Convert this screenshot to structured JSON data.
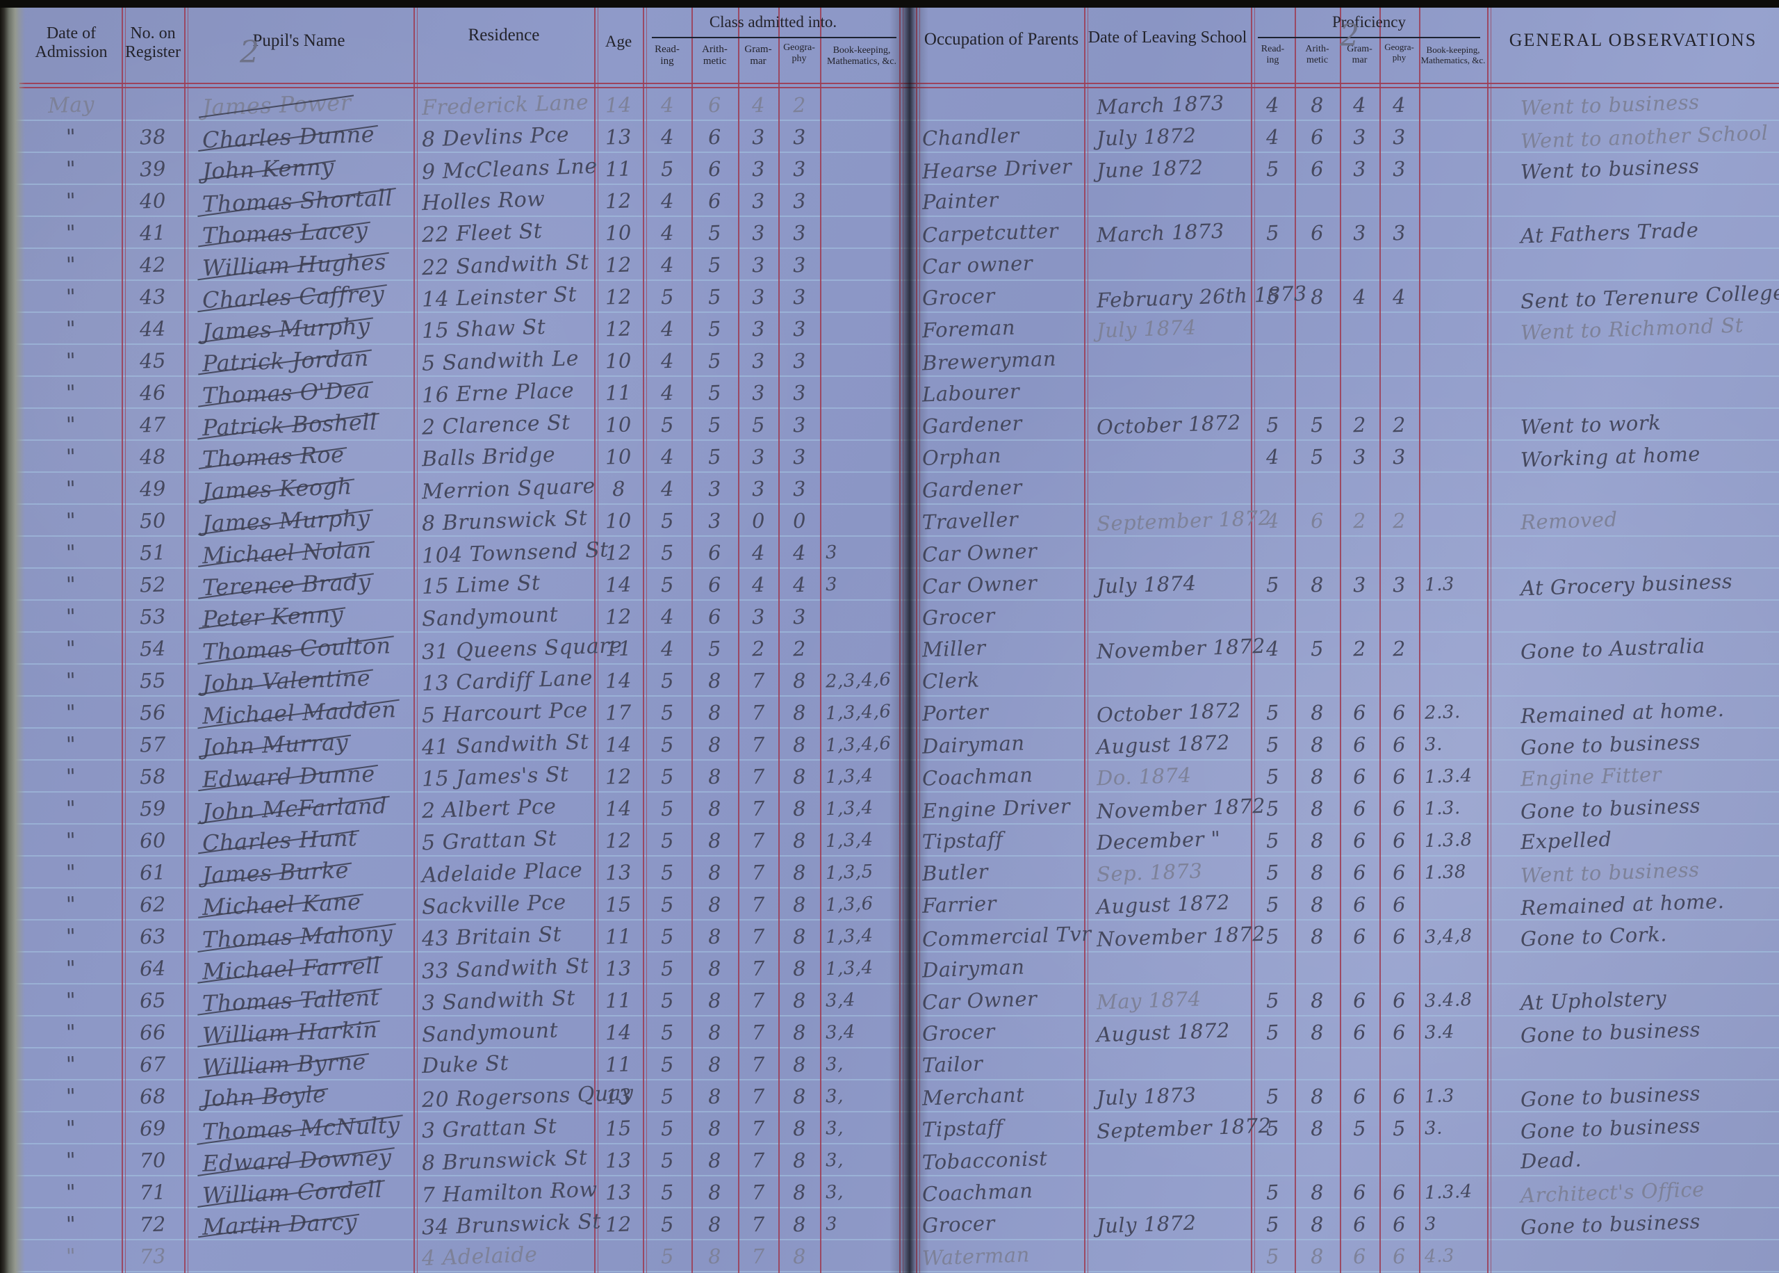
{
  "page": {
    "page_number_left": "2",
    "page_number_right": "2"
  },
  "headers": {
    "date_of_admission": "Date of\nAdmission",
    "no_on_register": "No. on\nRegister",
    "pupils_name": "Pupil's Name",
    "residence": "Residence",
    "age": "Age",
    "class_admitted_into": "Class admitted into.",
    "occupation_of_parents": "Occupation of Parents",
    "date_of_leaving_school": "Date of Leaving School",
    "proficiency": "Proficiency",
    "general_observations": "GENERAL OBSERVATIONS",
    "sub": [
      "Read-\ning",
      "Arith-\nmetic",
      "Gram-\nmar",
      "Geogra-\nphy",
      "Book-keeping,\nMathematics, &c."
    ]
  },
  "rows": [
    {
      "adm": "May",
      "no": "",
      "name": "James Power",
      "res": "Frederick Lane",
      "age": "14",
      "cr": "4",
      "ca": "6",
      "cg": "4",
      "cge": "2",
      "cb": "",
      "occ": "",
      "leave": "March 1873",
      "pr": "4",
      "pa": "8",
      "pg": "4",
      "pge": "4",
      "pb": "",
      "obs": "Went to business",
      "lt": [
        "adm",
        "name",
        "res",
        "age",
        "cr",
        "ca",
        "cg",
        "cge",
        "obs"
      ]
    },
    {
      "adm": "\"",
      "no": "38",
      "name": "Charles Dunne",
      "res": "8 Devlins Pce",
      "age": "13",
      "cr": "4",
      "ca": "6",
      "cg": "3",
      "cge": "3",
      "cb": "",
      "occ": "Chandler",
      "leave": "July 1872",
      "pr": "4",
      "pa": "6",
      "pg": "3",
      "pge": "3",
      "pb": "",
      "obs": "Went to another School",
      "lt": [
        "obs"
      ]
    },
    {
      "adm": "\"",
      "no": "39",
      "name": "John Kenny",
      "res": "9 McCleans Lne",
      "age": "11",
      "cr": "5",
      "ca": "6",
      "cg": "3",
      "cge": "3",
      "cb": "",
      "occ": "Hearse Driver",
      "leave": "June 1872",
      "pr": "5",
      "pa": "6",
      "pg": "3",
      "pge": "3",
      "pb": "",
      "obs": "Went to business"
    },
    {
      "adm": "\"",
      "no": "40",
      "name": "Thomas Shortall",
      "res": "Holles Row",
      "age": "12",
      "cr": "4",
      "ca": "6",
      "cg": "3",
      "cge": "3",
      "cb": "",
      "occ": "Painter",
      "leave": "",
      "pr": "",
      "pa": "",
      "pg": "",
      "pge": "",
      "pb": "",
      "obs": ""
    },
    {
      "adm": "\"",
      "no": "41",
      "name": "Thomas Lacey",
      "res": "22 Fleet St",
      "age": "10",
      "cr": "4",
      "ca": "5",
      "cg": "3",
      "cge": "3",
      "cb": "",
      "occ": "Carpetcutter",
      "leave": "March 1873",
      "pr": "5",
      "pa": "6",
      "pg": "3",
      "pge": "3",
      "pb": "",
      "obs": "At Fathers Trade"
    },
    {
      "adm": "\"",
      "no": "42",
      "name": "William Hughes",
      "res": "22 Sandwith St",
      "age": "12",
      "cr": "4",
      "ca": "5",
      "cg": "3",
      "cge": "3",
      "cb": "",
      "occ": "Car owner",
      "leave": "",
      "pr": "",
      "pa": "",
      "pg": "",
      "pge": "",
      "pb": "",
      "obs": ""
    },
    {
      "adm": "\"",
      "no": "43",
      "name": "Charles Caffrey",
      "res": "14 Leinster St",
      "age": "12",
      "cr": "5",
      "ca": "5",
      "cg": "3",
      "cge": "3",
      "cb": "",
      "occ": "Grocer",
      "leave": "February 26th 1873",
      "pr": "5",
      "pa": "8",
      "pg": "4",
      "pge": "4",
      "pb": "",
      "obs": "Sent to Terenure College"
    },
    {
      "adm": "\"",
      "no": "44",
      "name": "James Murphy",
      "res": "15 Shaw St",
      "age": "12",
      "cr": "4",
      "ca": "5",
      "cg": "3",
      "cge": "3",
      "cb": "",
      "occ": "Foreman",
      "leave": "July 1874",
      "pr": "",
      "pa": "",
      "pg": "",
      "pge": "",
      "pb": "",
      "obs": "Went to Richmond St",
      "lt": [
        "leave",
        "obs"
      ]
    },
    {
      "adm": "\"",
      "no": "45",
      "name": "Patrick Jordan",
      "res": "5 Sandwith Le",
      "age": "10",
      "cr": "4",
      "ca": "5",
      "cg": "3",
      "cge": "3",
      "cb": "",
      "occ": "Breweryman",
      "leave": "",
      "pr": "",
      "pa": "",
      "pg": "",
      "pge": "",
      "pb": "",
      "obs": ""
    },
    {
      "adm": "\"",
      "no": "46",
      "name": "Thomas O'Dea",
      "res": "16 Erne Place",
      "age": "11",
      "cr": "4",
      "ca": "5",
      "cg": "3",
      "cge": "3",
      "cb": "",
      "occ": "Labourer",
      "leave": "",
      "pr": "",
      "pa": "",
      "pg": "",
      "pge": "",
      "pb": "",
      "obs": ""
    },
    {
      "adm": "\"",
      "no": "47",
      "name": "Patrick Boshell",
      "res": "2 Clarence St",
      "age": "10",
      "cr": "5",
      "ca": "5",
      "cg": "5",
      "cge": "3",
      "cb": "",
      "occ": "Gardener",
      "leave": "October 1872",
      "pr": "5",
      "pa": "5",
      "pg": "2",
      "pge": "2",
      "pb": "",
      "obs": "Went to work"
    },
    {
      "adm": "\"",
      "no": "48",
      "name": "Thomas Roe",
      "res": "Balls Bridge",
      "age": "10",
      "cr": "4",
      "ca": "5",
      "cg": "3",
      "cge": "3",
      "cb": "",
      "occ": "Orphan",
      "leave": "",
      "pr": "4",
      "pa": "5",
      "pg": "3",
      "pge": "3",
      "pb": "",
      "obs": "Working at home"
    },
    {
      "adm": "\"",
      "no": "49",
      "name": "James Keogh",
      "res": "Merrion Square",
      "age": "8",
      "cr": "4",
      "ca": "3",
      "cg": "3",
      "cge": "3",
      "cb": "",
      "occ": "Gardener",
      "leave": "",
      "pr": "",
      "pa": "",
      "pg": "",
      "pge": "",
      "pb": "",
      "obs": ""
    },
    {
      "adm": "\"",
      "no": "50",
      "name": "James Murphy",
      "res": "8 Brunswick St",
      "age": "10",
      "cr": "5",
      "ca": "3",
      "cg": "0",
      "cge": "0",
      "cb": "",
      "occ": "Traveller",
      "leave": "September 1872",
      "pr": "4",
      "pa": "6",
      "pg": "2",
      "pge": "2",
      "pb": "",
      "obs": "Removed",
      "lt": [
        "leave",
        "pr",
        "pa",
        "pg",
        "pge",
        "obs"
      ]
    },
    {
      "adm": "\"",
      "no": "51",
      "name": "Michael Nolan",
      "res": "104 Townsend St",
      "age": "12",
      "cr": "5",
      "ca": "6",
      "cg": "4",
      "cge": "4",
      "cb": "3",
      "occ": "Car Owner",
      "leave": "",
      "pr": "",
      "pa": "",
      "pg": "",
      "pge": "",
      "pb": "",
      "obs": ""
    },
    {
      "adm": "\"",
      "no": "52",
      "name": "Terence Brady",
      "res": "15 Lime St",
      "age": "14",
      "cr": "5",
      "ca": "6",
      "cg": "4",
      "cge": "4",
      "cb": "3",
      "occ": "Car Owner",
      "leave": "July 1874",
      "pr": "5",
      "pa": "8",
      "pg": "3",
      "pge": "3",
      "pb": "1.3",
      "obs": "At Grocery business"
    },
    {
      "adm": "\"",
      "no": "53",
      "name": "Peter Kenny",
      "res": "Sandymount",
      "age": "12",
      "cr": "4",
      "ca": "6",
      "cg": "3",
      "cge": "3",
      "cb": "",
      "occ": "Grocer",
      "leave": "",
      "pr": "",
      "pa": "",
      "pg": "",
      "pge": "",
      "pb": "",
      "obs": ""
    },
    {
      "adm": "\"",
      "no": "54",
      "name": "Thomas Coulton",
      "res": "31 Queens Square",
      "age": "11",
      "cr": "4",
      "ca": "5",
      "cg": "2",
      "cge": "2",
      "cb": "",
      "occ": "Miller",
      "leave": "November 1872",
      "pr": "4",
      "pa": "5",
      "pg": "2",
      "pge": "2",
      "pb": "",
      "obs": "Gone to Australia"
    },
    {
      "adm": "\"",
      "no": "55",
      "name": "John Valentine",
      "res": "13 Cardiff Lane",
      "age": "14",
      "cr": "5",
      "ca": "8",
      "cg": "7",
      "cge": "8",
      "cb": "2,3,4,6",
      "occ": "Clerk",
      "leave": "",
      "pr": "",
      "pa": "",
      "pg": "",
      "pge": "",
      "pb": "",
      "obs": ""
    },
    {
      "adm": "\"",
      "no": "56",
      "name": "Michael Madden",
      "res": "5 Harcourt Pce",
      "age": "17",
      "cr": "5",
      "ca": "8",
      "cg": "7",
      "cge": "8",
      "cb": "1,3,4,6",
      "occ": "Porter",
      "leave": "October 1872",
      "pr": "5",
      "pa": "8",
      "pg": "6",
      "pge": "6",
      "pb": "2.3.",
      "obs": "Remained at home."
    },
    {
      "adm": "\"",
      "no": "57",
      "name": "John Murray",
      "res": "41 Sandwith St",
      "age": "14",
      "cr": "5",
      "ca": "8",
      "cg": "7",
      "cge": "8",
      "cb": "1,3,4,6",
      "occ": "Dairyman",
      "leave": "August 1872",
      "pr": "5",
      "pa": "8",
      "pg": "6",
      "pge": "6",
      "pb": "3.",
      "obs": "Gone to business"
    },
    {
      "adm": "\"",
      "no": "58",
      "name": "Edward Dunne",
      "res": "15 James's St",
      "age": "12",
      "cr": "5",
      "ca": "8",
      "cg": "7",
      "cge": "8",
      "cb": "1,3,4",
      "occ": "Coachman",
      "leave": "Do. 1874",
      "pr": "5",
      "pa": "8",
      "pg": "6",
      "pge": "6",
      "pb": "1.3.4",
      "obs": "Engine Fitter",
      "lt": [
        "leave",
        "obs"
      ]
    },
    {
      "adm": "\"",
      "no": "59",
      "name": "John McFarland",
      "res": "2 Albert Pce",
      "age": "14",
      "cr": "5",
      "ca": "8",
      "cg": "7",
      "cge": "8",
      "cb": "1,3,4",
      "occ": "Engine Driver",
      "leave": "November 1872",
      "pr": "5",
      "pa": "8",
      "pg": "6",
      "pge": "6",
      "pb": "1.3.",
      "obs": "Gone to business"
    },
    {
      "adm": "\"",
      "no": "60",
      "name": "Charles Hunt",
      "res": "5 Grattan St",
      "age": "12",
      "cr": "5",
      "ca": "8",
      "cg": "7",
      "cge": "8",
      "cb": "1,3,4",
      "occ": "Tipstaff",
      "leave": "December \"",
      "pr": "5",
      "pa": "8",
      "pg": "6",
      "pge": "6",
      "pb": "1.3.8",
      "obs": "Expelled"
    },
    {
      "adm": "\"",
      "no": "61",
      "name": "James Burke",
      "res": "Adelaide Place",
      "age": "13",
      "cr": "5",
      "ca": "8",
      "cg": "7",
      "cge": "8",
      "cb": "1,3,5",
      "occ": "Butler",
      "leave": "Sep. 1873",
      "pr": "5",
      "pa": "8",
      "pg": "6",
      "pge": "6",
      "pb": "1.38",
      "obs": "Went to business",
      "lt": [
        "leave",
        "obs"
      ]
    },
    {
      "adm": "\"",
      "no": "62",
      "name": "Michael Kane",
      "res": "Sackville Pce",
      "age": "15",
      "cr": "5",
      "ca": "8",
      "cg": "7",
      "cge": "8",
      "cb": "1,3,6",
      "occ": "Farrier",
      "leave": "August 1872",
      "pr": "5",
      "pa": "8",
      "pg": "6",
      "pge": "6",
      "pb": "",
      "obs": "Remained at home."
    },
    {
      "adm": "\"",
      "no": "63",
      "name": "Thomas Mahony",
      "res": "43 Britain St",
      "age": "11",
      "cr": "5",
      "ca": "8",
      "cg": "7",
      "cge": "8",
      "cb": "1,3,4",
      "occ": "Commercial Tvr",
      "leave": "November 1872",
      "pr": "5",
      "pa": "8",
      "pg": "6",
      "pge": "6",
      "pb": "3,4,8",
      "obs": "Gone to Cork."
    },
    {
      "adm": "\"",
      "no": "64",
      "name": "Michael Farrell",
      "res": "33 Sandwith St",
      "age": "13",
      "cr": "5",
      "ca": "8",
      "cg": "7",
      "cge": "8",
      "cb": "1,3,4",
      "occ": "Dairyman",
      "leave": "",
      "pr": "",
      "pa": "",
      "pg": "",
      "pge": "",
      "pb": "",
      "obs": ""
    },
    {
      "adm": "\"",
      "no": "65",
      "name": "Thomas Tallent",
      "res": "3 Sandwith St",
      "age": "11",
      "cr": "5",
      "ca": "8",
      "cg": "7",
      "cge": "8",
      "cb": "3,4",
      "occ": "Car Owner",
      "leave": "May 1874",
      "pr": "5",
      "pa": "8",
      "pg": "6",
      "pge": "6",
      "pb": "3.4.8",
      "obs": "At Upholstery",
      "lt": [
        "leave"
      ]
    },
    {
      "adm": "\"",
      "no": "66",
      "name": "William Harkin",
      "res": "Sandymount",
      "age": "14",
      "cr": "5",
      "ca": "8",
      "cg": "7",
      "cge": "8",
      "cb": "3,4",
      "occ": "Grocer",
      "leave": "August 1872",
      "pr": "5",
      "pa": "8",
      "pg": "6",
      "pge": "6",
      "pb": "3.4",
      "obs": "Gone to business"
    },
    {
      "adm": "\"",
      "no": "67",
      "name": "William Byrne",
      "res": "Duke St",
      "age": "11",
      "cr": "5",
      "ca": "8",
      "cg": "7",
      "cge": "8",
      "cb": "3,",
      "occ": "Tailor",
      "leave": "",
      "pr": "",
      "pa": "",
      "pg": "",
      "pge": "",
      "pb": "",
      "obs": ""
    },
    {
      "adm": "\"",
      "no": "68",
      "name": "John Boyle",
      "res": "20 Rogersons Quay",
      "age": "13",
      "cr": "5",
      "ca": "8",
      "cg": "7",
      "cge": "8",
      "cb": "3,",
      "occ": "Merchant",
      "leave": "July 1873",
      "pr": "5",
      "pa": "8",
      "pg": "6",
      "pge": "6",
      "pb": "1.3",
      "obs": "Gone to business"
    },
    {
      "adm": "\"",
      "no": "69",
      "name": "Thomas McNulty",
      "res": "3 Grattan St",
      "age": "15",
      "cr": "5",
      "ca": "8",
      "cg": "7",
      "cge": "8",
      "cb": "3,",
      "occ": "Tipstaff",
      "leave": "September 1872",
      "pr": "5",
      "pa": "8",
      "pg": "5",
      "pge": "5",
      "pb": "3.",
      "obs": "Gone to business"
    },
    {
      "adm": "\"",
      "no": "70",
      "name": "Edward Downey",
      "res": "8 Brunswick St",
      "age": "13",
      "cr": "5",
      "ca": "8",
      "cg": "7",
      "cge": "8",
      "cb": "3,",
      "occ": "Tobacconist",
      "leave": "",
      "pr": "",
      "pa": "",
      "pg": "",
      "pge": "",
      "pb": "",
      "obs": "Dead."
    },
    {
      "adm": "\"",
      "no": "71",
      "name": "William Cordell",
      "res": "7 Hamilton Row",
      "age": "13",
      "cr": "5",
      "ca": "8",
      "cg": "7",
      "cge": "8",
      "cb": "3,",
      "occ": "Coachman",
      "leave": "",
      "pr": "5",
      "pa": "8",
      "pg": "6",
      "pge": "6",
      "pb": "1.3.4",
      "obs": "Architect's Office",
      "lt": [
        "obs"
      ]
    },
    {
      "adm": "\"",
      "no": "72",
      "name": "Martin Darcy",
      "res": "34 Brunswick St",
      "age": "12",
      "cr": "5",
      "ca": "8",
      "cg": "7",
      "cge": "8",
      "cb": "3",
      "occ": "Grocer",
      "leave": "July 1872",
      "pr": "5",
      "pa": "8",
      "pg": "6",
      "pge": "6",
      "pb": "3",
      "obs": "Gone to business"
    },
    {
      "adm": "\"",
      "no": "73",
      "name": "",
      "res": "4 Adelaide",
      "age": "",
      "cr": "5",
      "ca": "8",
      "cg": "7",
      "cge": "8",
      "cb": "",
      "occ": "Waterman",
      "leave": "",
      "pr": "5",
      "pa": "8",
      "pg": "6",
      "pge": "6",
      "pb": "4.3",
      "obs": "",
      "lt": [
        "*"
      ]
    }
  ]
}
